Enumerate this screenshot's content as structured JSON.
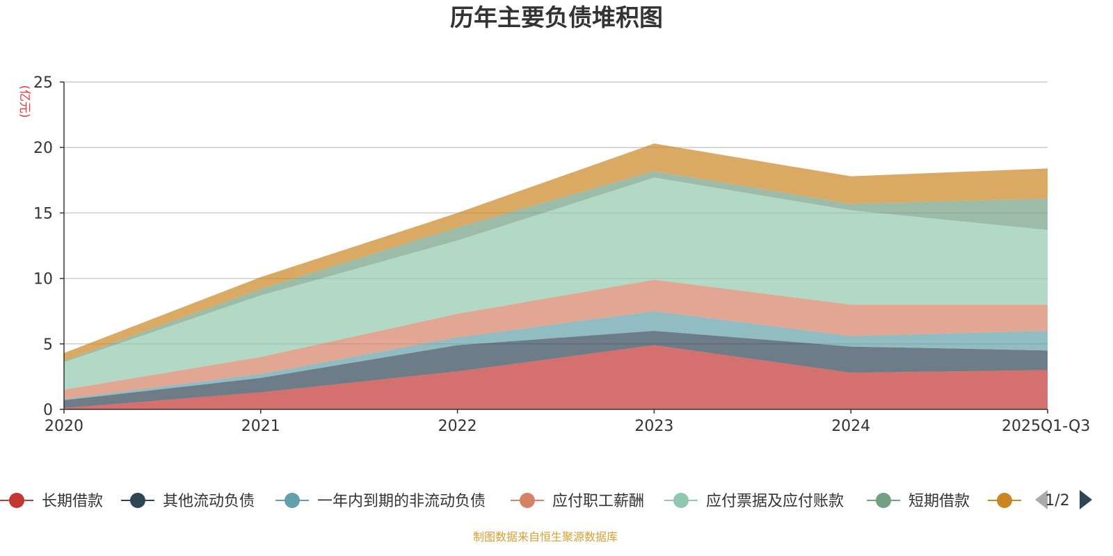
{
  "chart_data": {
    "type": "area",
    "stacked": true,
    "title": "历年主要负债堆积图",
    "ylabel": "(亿元)",
    "xlabel": "",
    "ylim": [
      0,
      25
    ],
    "yticks": [
      0,
      5,
      10,
      15,
      20,
      25
    ],
    "categories": [
      "2020",
      "2021",
      "2022",
      "2023",
      "2024",
      "2025Q1-Q3"
    ],
    "grid": true,
    "legend_position": "bottom",
    "series": [
      {
        "name": "长期借款",
        "color": "#c23531",
        "values": [
          0.1,
          1.3,
          2.9,
          4.9,
          2.8,
          3.0
        ]
      },
      {
        "name": "其他流动负债",
        "color": "#2f4554",
        "values": [
          0.6,
          1.1,
          2.0,
          1.1,
          2.0,
          1.5
        ]
      },
      {
        "name": "一年内到期的非流动负债",
        "color": "#61a0a8",
        "values": [
          0.1,
          0.3,
          0.6,
          1.5,
          0.8,
          1.5
        ]
      },
      {
        "name": "应付职工薪酬",
        "color": "#d48265",
        "values": [
          0.7,
          1.3,
          1.8,
          2.4,
          2.4,
          2.0
        ]
      },
      {
        "name": "应付票据及应付账款",
        "color": "#91c7ae",
        "values": [
          2.1,
          4.7,
          5.6,
          7.8,
          7.2,
          5.7
        ]
      },
      {
        "name": "短期借款",
        "color": "#749f83",
        "values": [
          0.1,
          0.5,
          1.0,
          0.5,
          0.5,
          2.4
        ]
      },
      {
        "name": "",
        "color": "#ca8622",
        "values": [
          0.6,
          0.9,
          1.1,
          2.1,
          2.1,
          2.3
        ]
      }
    ]
  },
  "legend": {
    "page_indicator": "1/2"
  },
  "footer": {
    "text": "制图数据来自恒生聚源数据库"
  }
}
